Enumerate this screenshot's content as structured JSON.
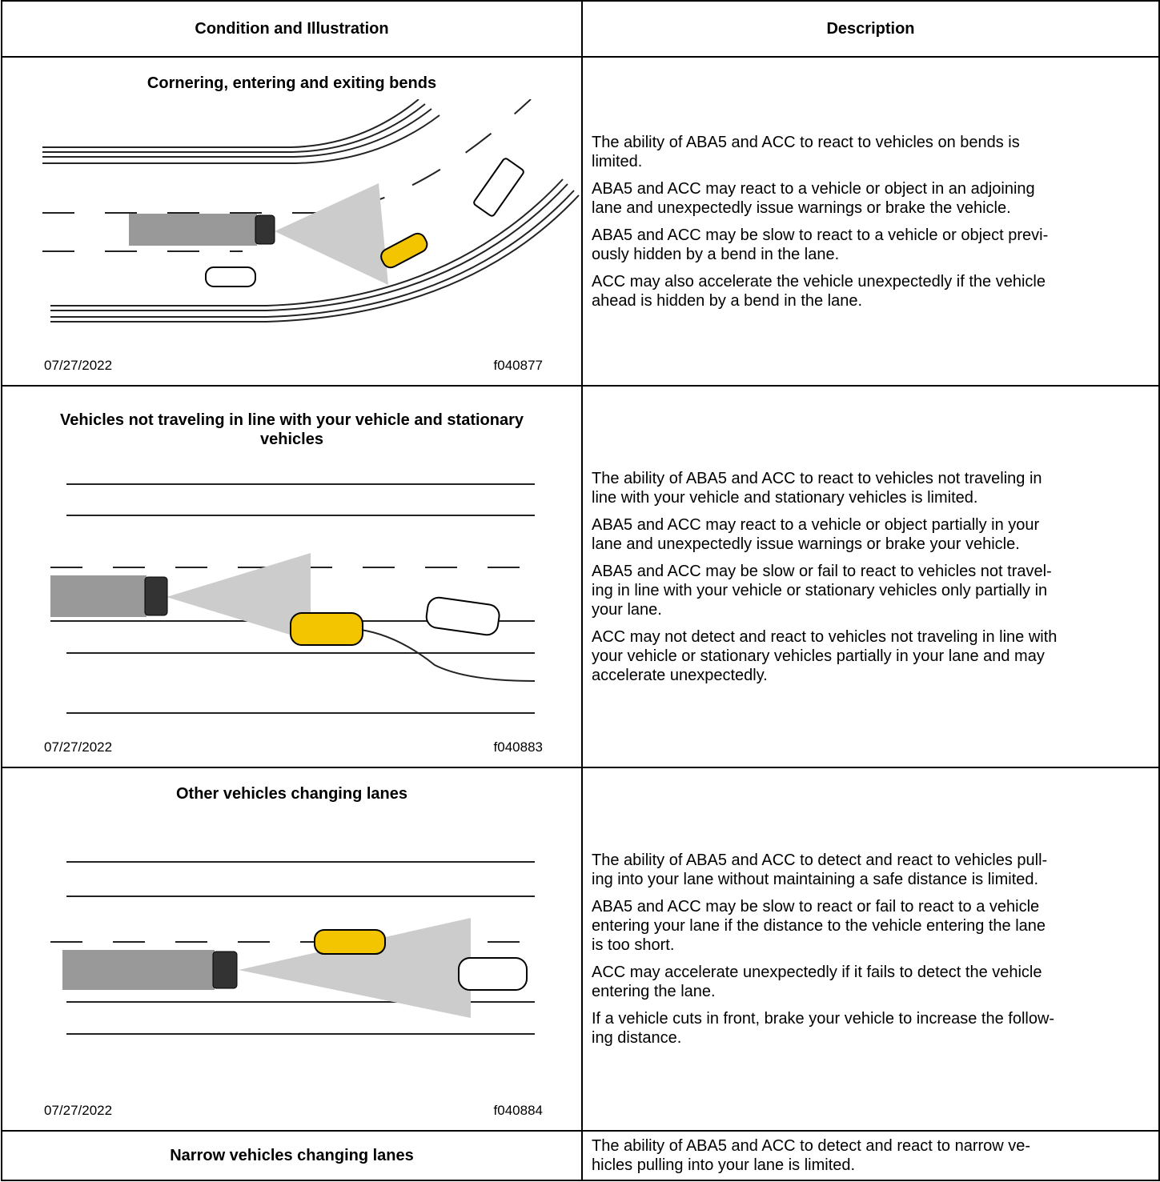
{
  "table": {
    "header": [
      "Condition and Illustration",
      "Description"
    ],
    "rows": [
      {
        "condition": "Cornering, entering and exiting bends",
        "date": "07/27/2022",
        "figure": "f040877",
        "description": [
          "The ability of ABA5 and ACC to react to vehicles on bends is\nlimited.",
          "ABA5 and ACC may react to a vehicle or object in an adjoining\nlane and unexpectedly issue warnings or brake the vehicle.",
          "ABA5 and ACC may be slow to react to a vehicle or object previ-\nously hidden by a bend in the lane.",
          "ACC may also accelerate the vehicle unexpectedly if the vehicle\nahead is hidden by a bend in the lane."
        ]
      },
      {
        "condition": "Vehicles not traveling in line with your vehicle and stationary\nvehicles",
        "date": "07/27/2022",
        "figure": "f040883",
        "description": [
          "The ability of ABA5 and ACC to react to vehicles not traveling in\nline with your vehicle and stationary vehicles is limited.",
          "ABA5 and ACC may react to a vehicle or object partially in your\nlane and unexpectedly issue warnings or brake your vehicle.",
          "ABA5 and ACC may be slow or fail to react to vehicles not travel-\ning in line with your vehicle or stationary vehicles only partially in\nyour lane.",
          "ACC may not detect and react to vehicles not traveling in line with\nyour vehicle or stationary vehicles partially in your lane and may\naccelerate unexpectedly."
        ]
      },
      {
        "condition": "Other vehicles changing lanes",
        "date": "07/27/2022",
        "figure": "f040884",
        "description": [
          "The ability of ABA5 and ACC to detect and react to vehicles pull-\ning into your lane without maintaining a safe distance is limited.",
          "ABA5 and ACC may be slow to react or fail to react to a vehicle\nentering your lane if the distance to the vehicle entering the lane\nis too short.",
          "ACC may accelerate unexpectedly if it fails to detect the vehicle\nentering the lane.",
          "If a vehicle cuts in front, brake your vehicle to increase the follow-\ning distance."
        ]
      },
      {
        "condition": "Narrow vehicles changing lanes",
        "description": [
          "The ability of ABA5 and ACC to detect and react to narrow ve-\nhicles pulling into your lane is limited."
        ]
      }
    ]
  }
}
